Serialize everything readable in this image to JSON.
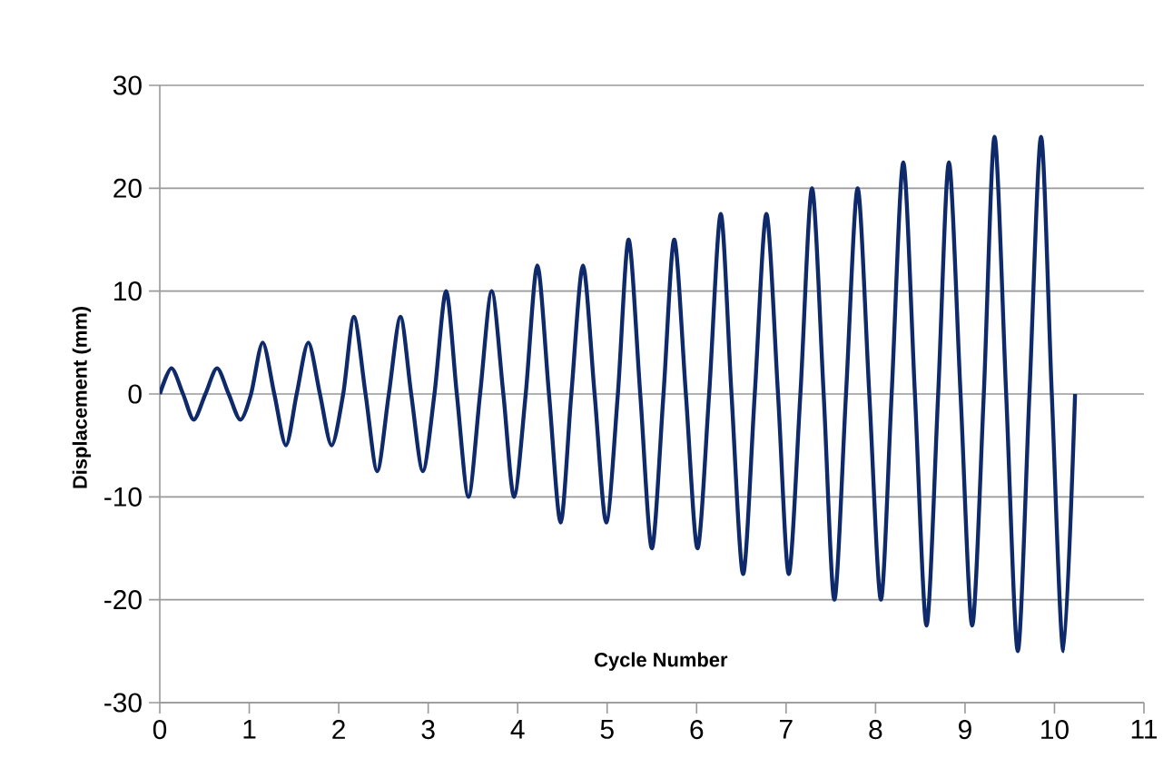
{
  "chart_data": {
    "type": "line",
    "xlabel": "Cycle Number",
    "ylabel": "Displacement (mm)",
    "xlim": [
      0,
      11
    ],
    "xticks": [
      0,
      1,
      2,
      3,
      4,
      5,
      6,
      7,
      8,
      9,
      10,
      11
    ],
    "ylim": [
      -30,
      30
    ],
    "yticks": [
      -30,
      -20,
      -10,
      0,
      10,
      20,
      30
    ],
    "grid": "y",
    "marker": "none",
    "line_style": "solid",
    "series": [
      {
        "color": "#0e2a6b",
        "x": [
          0.0,
          0.13,
          0.26,
          0.38,
          0.51,
          0.64,
          0.77,
          0.9,
          1.02,
          1.15,
          1.28,
          1.41,
          1.53,
          1.66,
          1.79,
          1.92,
          2.05,
          2.17,
          2.3,
          2.43,
          2.56,
          2.69,
          2.81,
          2.94,
          3.07,
          3.2,
          3.32,
          3.45,
          3.58,
          3.71,
          3.84,
          3.96,
          4.09,
          4.22,
          4.35,
          4.48,
          4.6,
          4.73,
          4.86,
          4.99,
          5.12,
          5.24,
          5.37,
          5.5,
          5.63,
          5.75,
          5.88,
          6.01,
          6.14,
          6.27,
          6.39,
          6.52,
          6.65,
          6.78,
          6.91,
          7.03,
          7.16,
          7.29,
          7.42,
          7.54,
          7.67,
          7.8,
          7.93,
          8.06,
          8.18,
          8.31,
          8.44,
          8.57,
          8.7,
          8.82,
          8.95,
          9.08,
          9.21,
          9.33,
          9.46,
          9.59,
          9.72,
          9.85,
          9.97,
          10.1,
          10.23
        ],
        "values": [
          0,
          2.5,
          0,
          -2.5,
          0,
          2.5,
          0,
          -2.5,
          0,
          5,
          0,
          -5,
          0,
          5,
          0,
          -5,
          0,
          7.5,
          0,
          -7.5,
          0,
          7.5,
          0,
          -7.5,
          0,
          10,
          0,
          -10,
          0,
          10,
          0,
          -10,
          0,
          12.5,
          0,
          -12.5,
          0,
          12.5,
          0,
          -12.5,
          0,
          15,
          0,
          -15,
          0,
          15,
          0,
          -15,
          0,
          17.5,
          0,
          -17.5,
          0,
          17.5,
          0,
          -17.5,
          0,
          20,
          0,
          -20,
          0,
          20,
          0,
          -20,
          0,
          22.5,
          0,
          -22.5,
          0,
          22.5,
          0,
          -22.5,
          0,
          25,
          0,
          -25,
          0,
          25,
          0,
          -25,
          0
        ]
      }
    ]
  }
}
